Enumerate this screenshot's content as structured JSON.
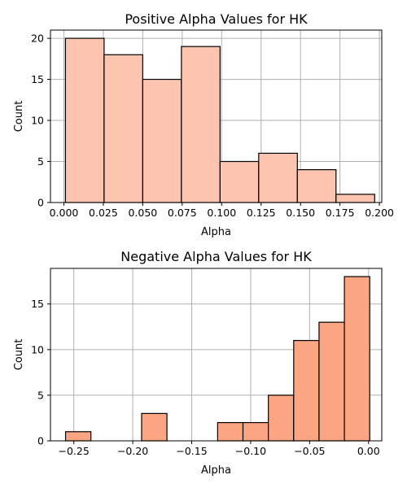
{
  "chart_data": [
    {
      "type": "bar",
      "title": "Positive Alpha Values for HK",
      "xlabel": "Alpha",
      "ylabel": "Count",
      "xlim": [
        -0.0085,
        0.2015
      ],
      "ylim": [
        0,
        21
      ],
      "xticks": [
        0.0,
        0.025,
        0.05,
        0.075,
        0.1,
        0.125,
        0.15,
        0.175,
        0.2
      ],
      "xtick_labels": [
        "0.000",
        "0.025",
        "0.050",
        "0.075",
        "0.100",
        "0.125",
        "0.150",
        "0.175",
        "0.200"
      ],
      "yticks": [
        0,
        5,
        10,
        15,
        20
      ],
      "ytick_labels": [
        "0",
        "5",
        "10",
        "15",
        "20"
      ],
      "grid": true,
      "bar_color": "#fdc5b0",
      "bins": [
        {
          "x0": 0.001,
          "x1": 0.0255,
          "count": 20
        },
        {
          "x0": 0.0255,
          "x1": 0.05,
          "count": 18
        },
        {
          "x0": 0.05,
          "x1": 0.0745,
          "count": 15
        },
        {
          "x0": 0.0745,
          "x1": 0.099,
          "count": 19
        },
        {
          "x0": 0.099,
          "x1": 0.1235,
          "count": 5
        },
        {
          "x0": 0.1235,
          "x1": 0.148,
          "count": 6
        },
        {
          "x0": 0.148,
          "x1": 0.1725,
          "count": 4
        },
        {
          "x0": 0.1725,
          "x1": 0.197,
          "count": 1
        }
      ]
    },
    {
      "type": "bar",
      "title": "Negative Alpha Values for HK",
      "xlabel": "Alpha",
      "ylabel": "Count",
      "xlim": [
        -0.2698,
        0.0112
      ],
      "ylim": [
        0,
        18.9
      ],
      "xticks": [
        -0.25,
        -0.2,
        -0.15,
        -0.1,
        -0.05,
        0.0
      ],
      "xtick_labels": [
        "−0.25",
        "−0.20",
        "−0.15",
        "−0.10",
        "−0.05",
        "0.00"
      ],
      "yticks": [
        0,
        5,
        10,
        15
      ],
      "ytick_labels": [
        "0",
        "5",
        "10",
        "15"
      ],
      "grid": true,
      "bar_color": "#fca582",
      "bins": [
        {
          "x0": -0.257,
          "x1": -0.2355,
          "count": 1
        },
        {
          "x0": -0.2355,
          "x1": -0.214,
          "count": 0
        },
        {
          "x0": -0.214,
          "x1": -0.1925,
          "count": 0
        },
        {
          "x0": -0.1925,
          "x1": -0.171,
          "count": 3
        },
        {
          "x0": -0.171,
          "x1": -0.1495,
          "count": 0
        },
        {
          "x0": -0.1495,
          "x1": -0.128,
          "count": 0
        },
        {
          "x0": -0.128,
          "x1": -0.1065,
          "count": 2
        },
        {
          "x0": -0.1065,
          "x1": -0.085,
          "count": 2
        },
        {
          "x0": -0.085,
          "x1": -0.0635,
          "count": 5
        },
        {
          "x0": -0.0635,
          "x1": -0.042,
          "count": 11
        },
        {
          "x0": -0.042,
          "x1": -0.0205,
          "count": 13
        },
        {
          "x0": -0.0205,
          "x1": 0.001,
          "count": 18
        }
      ]
    }
  ]
}
